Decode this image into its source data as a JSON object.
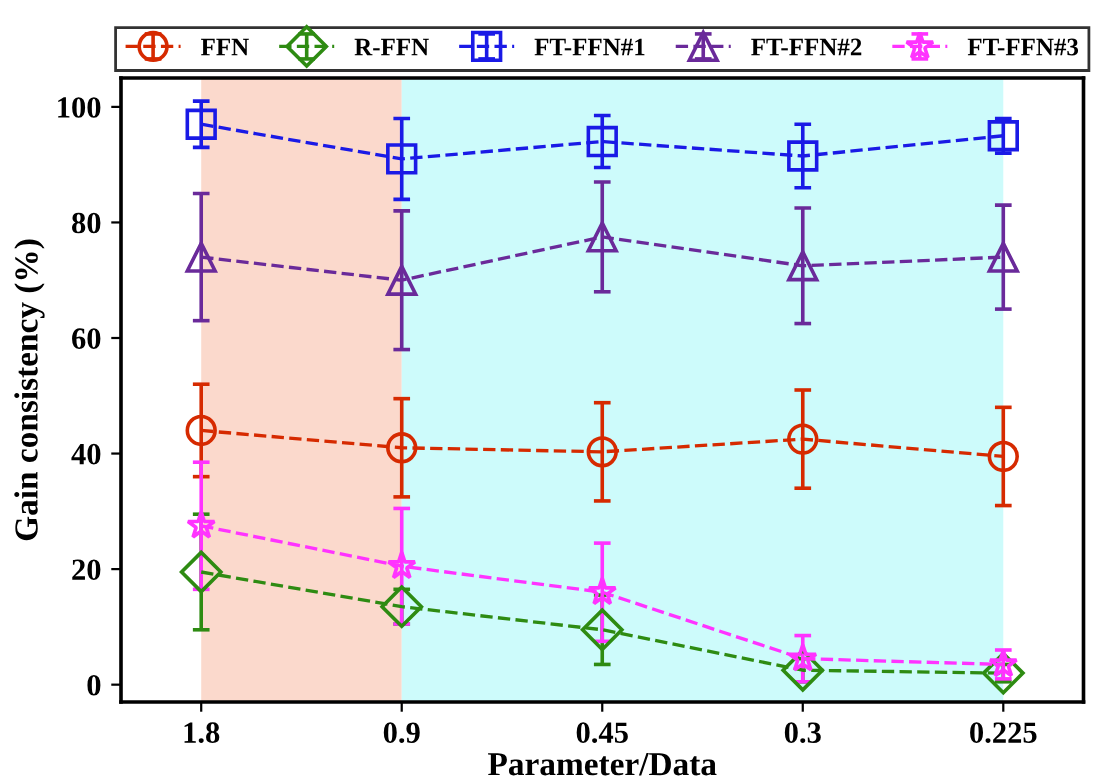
{
  "chart_data": {
    "type": "line",
    "xlabel": "Parameter/Data",
    "ylabel": "Gain consistency (%)",
    "categories": [
      "1.8",
      "0.9",
      "0.45",
      "0.3",
      "0.225"
    ],
    "ylim": [
      -3,
      105
    ],
    "yticks": [
      0,
      20,
      40,
      60,
      80,
      100
    ],
    "grid": false,
    "legend": "top",
    "line_style": "dashed",
    "bands": [
      {
        "axis": "x",
        "from": "1.8",
        "to": "0.9",
        "color": "#fbd9cc"
      },
      {
        "axis": "x",
        "from": "0.9",
        "to": "0.225",
        "color": "#cdfbfb"
      }
    ],
    "series": [
      {
        "name": "FFN",
        "color": "#d62a00",
        "marker": "circle",
        "values": [
          44,
          41,
          40.3,
          42.5,
          39.5
        ],
        "errors": [
          8,
          8.5,
          8.5,
          8.5,
          8.5
        ]
      },
      {
        "name": "R-FFN",
        "color": "#2e8b12",
        "marker": "diamond",
        "values": [
          19.5,
          13.5,
          9.5,
          2.5,
          2
        ],
        "errors": [
          10,
          3,
          6,
          2,
          1.5
        ]
      },
      {
        "name": "FT-FFN#1",
        "color": "#1a1ae6",
        "marker": "square",
        "values": [
          97,
          91,
          94,
          91.5,
          95
        ],
        "errors": [
          4,
          7,
          4.5,
          5.5,
          3
        ]
      },
      {
        "name": "FT-FFN#2",
        "color": "#6a2a9a",
        "marker": "triangle",
        "values": [
          74,
          70,
          77.5,
          72.5,
          74
        ],
        "errors": [
          11,
          12,
          9.5,
          10,
          9
        ]
      },
      {
        "name": "FT-FFN#3",
        "color": "#ff33ff",
        "marker": "star",
        "values": [
          27.5,
          20.5,
          16,
          4.5,
          3.5
        ],
        "errors": [
          11,
          10,
          8.5,
          4,
          2.5
        ]
      }
    ]
  }
}
